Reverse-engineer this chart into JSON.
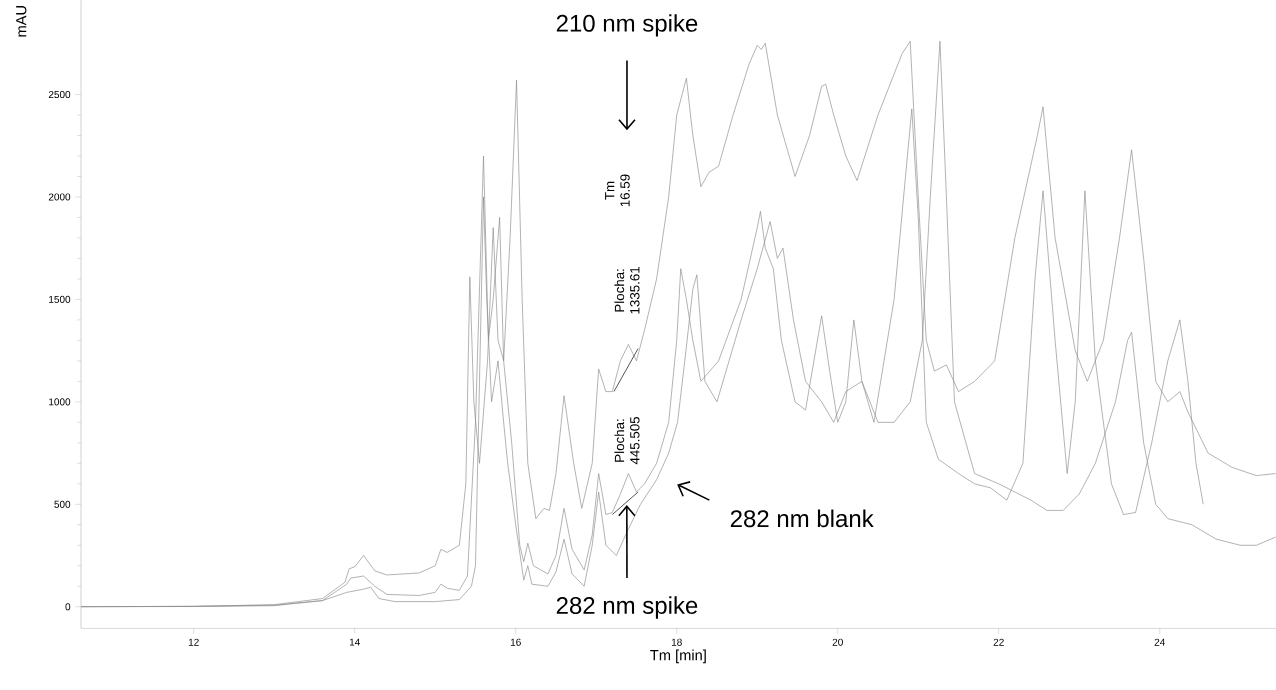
{
  "chart_data": {
    "type": "line",
    "xlabel": "Tm [min]",
    "ylabel": "mAU",
    "xlim": [
      10.6,
      25.44
    ],
    "ylim": [
      -105,
      2960
    ],
    "xticks": [
      12,
      14,
      16,
      18,
      20,
      22,
      24
    ],
    "yticks": [
      0,
      500,
      1000,
      1500,
      2000,
      2500
    ],
    "marker": "none",
    "series": [
      {
        "color": "#8c8c8c",
        "x": [
          10.6,
          12,
          13,
          13.6,
          13.88,
          13.93,
          14.0,
          14.11,
          14.25,
          14.4,
          14.8,
          15.0,
          15.07,
          15.15,
          15.3,
          15.38,
          15.43,
          15.48,
          15.55,
          15.65,
          15.72,
          15.78,
          15.85,
          15.93,
          16.01,
          16.08,
          16.15,
          16.25,
          16.35,
          16.42,
          16.5,
          16.6,
          16.72,
          16.82,
          16.95,
          17.03,
          17.12,
          17.2,
          17.3,
          17.4,
          17.5,
          17.6,
          17.75,
          17.9,
          18.0,
          18.12,
          18.2,
          18.3,
          18.4,
          18.52,
          18.7,
          18.9,
          19.0,
          19.05,
          19.1,
          19.25,
          19.47,
          19.65,
          19.8,
          19.85,
          19.95,
          20.1,
          20.24,
          20.5,
          20.8,
          20.9,
          21.0,
          21.1,
          21.2,
          21.35,
          21.5,
          21.7,
          21.95,
          22.2,
          22.48,
          22.55,
          22.7,
          22.95,
          23.1,
          23.3,
          23.5,
          23.65,
          23.8,
          23.95,
          24.1,
          24.25,
          24.35,
          24.6,
          24.9,
          25.2,
          25.44
        ],
        "values": [
          0,
          2,
          10,
          40,
          120,
          185,
          195,
          250,
          175,
          155,
          165,
          200,
          280,
          265,
          300,
          600,
          1610,
          1000,
          700,
          1200,
          1850,
          1300,
          1200,
          1800,
          2570,
          1500,
          700,
          430,
          480,
          470,
          650,
          1030,
          700,
          480,
          700,
          1160,
          1050,
          1050,
          1200,
          1280,
          1200,
          1350,
          1600,
          2000,
          2400,
          2580,
          2300,
          2050,
          2120,
          2150,
          2400,
          2650,
          2740,
          2720,
          2750,
          2400,
          2100,
          2300,
          2540,
          2550,
          2400,
          2200,
          2080,
          2400,
          2700,
          2760,
          2000,
          1300,
          1150,
          1180,
          1050,
          1100,
          1200,
          1800,
          2300,
          2440,
          1800,
          1250,
          1100,
          1300,
          1800,
          2230,
          1700,
          1100,
          1000,
          1050,
          950,
          750,
          680,
          640,
          650
        ]
      },
      {
        "color": "#8c8c8c",
        "x": [
          10.6,
          12,
          13,
          13.6,
          13.9,
          13.95,
          14.11,
          14.25,
          14.4,
          14.8,
          15.0,
          15.07,
          15.15,
          15.3,
          15.4,
          15.5,
          15.6,
          15.66,
          15.72,
          15.8,
          15.85,
          15.95,
          16.05,
          16.1,
          16.15,
          16.22,
          16.4,
          16.5,
          16.6,
          16.7,
          16.85,
          16.95,
          17.03,
          17.12,
          17.2,
          17.3,
          17.4,
          17.5,
          17.6,
          17.75,
          17.9,
          18.0,
          18.05,
          18.12,
          18.2,
          18.3,
          18.52,
          18.8,
          19.0,
          19.04,
          19.1,
          19.2,
          19.3,
          19.47,
          19.6,
          19.8,
          19.9,
          20.0,
          20.1,
          20.2,
          20.3,
          20.45,
          20.7,
          20.92,
          21.0,
          21.1,
          21.25,
          21.5,
          21.7,
          21.9,
          22.1,
          22.3,
          22.45,
          22.55,
          22.7,
          22.85,
          22.95,
          23.07,
          23.2,
          23.4,
          23.55,
          23.7,
          23.9,
          24.1,
          24.25,
          24.35,
          24.45,
          24.54
        ],
        "values": [
          0,
          2,
          8,
          30,
          110,
          140,
          150,
          100,
          60,
          55,
          70,
          110,
          90,
          80,
          150,
          900,
          2200,
          1300,
          1500,
          1900,
          1200,
          800,
          300,
          220,
          310,
          200,
          160,
          250,
          480,
          280,
          180,
          350,
          650,
          450,
          460,
          550,
          650,
          560,
          600,
          700,
          900,
          1300,
          1650,
          1500,
          1300,
          1100,
          1200,
          1500,
          1850,
          1930,
          1750,
          1650,
          1300,
          1000,
          960,
          1420,
          1150,
          900,
          1000,
          1400,
          1100,
          900,
          1500,
          2430,
          1900,
          900,
          720,
          650,
          600,
          580,
          520,
          700,
          1600,
          2030,
          1300,
          650,
          1000,
          2030,
          1200,
          600,
          450,
          460,
          800,
          1200,
          1400,
          1100,
          700,
          500
        ]
      },
      {
        "color": "#8c8c8c",
        "x": [
          10.6,
          12,
          13,
          13.6,
          13.9,
          14.1,
          14.2,
          14.3,
          14.5,
          15.0,
          15.3,
          15.45,
          15.5,
          15.55,
          15.6,
          15.64,
          15.7,
          15.78,
          15.85,
          15.9,
          16.0,
          16.1,
          16.15,
          16.2,
          16.4,
          16.5,
          16.6,
          16.7,
          16.85,
          16.95,
          17.03,
          17.12,
          17.25,
          17.4,
          17.55,
          17.75,
          17.9,
          18.01,
          18.1,
          18.2,
          18.25,
          18.35,
          18.5,
          18.8,
          19.0,
          19.16,
          19.25,
          19.32,
          19.45,
          19.6,
          19.8,
          19.95,
          20.1,
          20.3,
          20.5,
          20.7,
          20.9,
          21.05,
          21.15,
          21.27,
          21.35,
          21.45,
          21.7,
          22.0,
          22.2,
          22.4,
          22.6,
          22.8,
          23.0,
          23.2,
          23.45,
          23.6,
          23.65,
          23.8,
          23.95,
          24.1,
          24.4,
          24.7,
          25.0,
          25.2,
          25.44
        ],
        "values": [
          0,
          1,
          5,
          30,
          70,
          85,
          95,
          40,
          25,
          25,
          35,
          100,
          200,
          1100,
          2000,
          1500,
          1000,
          1200,
          900,
          700,
          400,
          130,
          200,
          110,
          100,
          170,
          330,
          160,
          100,
          300,
          560,
          300,
          250,
          380,
          500,
          620,
          750,
          900,
          1200,
          1550,
          1620,
          1100,
          1000,
          1400,
          1650,
          1880,
          1700,
          1750,
          1400,
          1100,
          1000,
          900,
          1050,
          1100,
          900,
          900,
          1000,
          1300,
          2000,
          2760,
          2000,
          1000,
          650,
          600,
          560,
          520,
          470,
          470,
          550,
          700,
          1000,
          1300,
          1340,
          800,
          500,
          430,
          400,
          330,
          300,
          300,
          340
        ]
      },
      {
        "color": "#000000",
        "x": [
          17.22,
          17.52
        ],
        "values": [
          1050,
          1260
        ]
      },
      {
        "color": "#000000",
        "x": [
          17.2,
          17.52
        ],
        "values": [
          450,
          560
        ]
      }
    ],
    "annotations": [
      "210 nm spike",
      {
        "text": "282 nm spike",
        "x": 17.38,
        "y": 496
      },
      "282 nm blank",
      "Tm 16.59",
      "Plocha: 1335.61",
      "Plocha: 445.505"
    ]
  }
}
